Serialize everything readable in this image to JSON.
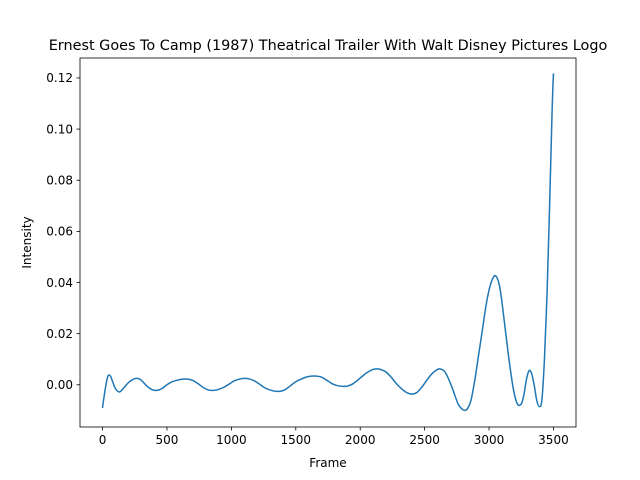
{
  "chart_data": {
    "type": "line",
    "title": "Ernest Goes To Camp (1987) Theatrical Trailer With Walt Disney Pictures Logo",
    "xlabel": "Frame",
    "ylabel": "Intensity",
    "xlim": [
      -175,
      3675
    ],
    "ylim": [
      -0.0165,
      0.1278
    ],
    "xticks": [
      0,
      500,
      1000,
      1500,
      2000,
      2500,
      3000,
      3500
    ],
    "xtick_labels": [
      "0",
      "500",
      "1000",
      "1500",
      "2000",
      "2500",
      "3000",
      "3500"
    ],
    "yticks": [
      0.0,
      0.02,
      0.04,
      0.06,
      0.08,
      0.1,
      0.12
    ],
    "ytick_labels": [
      "0.00",
      "0.02",
      "0.04",
      "0.06",
      "0.08",
      "0.10",
      "0.12"
    ],
    "grid": false,
    "line_color": "#1f77b4",
    "series": [
      {
        "name": "",
        "x": [
          0,
          20,
          40,
          60,
          80,
          100,
          130,
          160,
          200,
          240,
          270,
          300,
          340,
          380,
          420,
          460,
          500,
          540,
          580,
          620,
          660,
          700,
          740,
          780,
          820,
          860,
          900,
          940,
          980,
          1020,
          1060,
          1100,
          1140,
          1180,
          1220,
          1260,
          1300,
          1340,
          1380,
          1420,
          1460,
          1500,
          1540,
          1580,
          1620,
          1660,
          1700,
          1740,
          1780,
          1820,
          1860,
          1900,
          1940,
          1980,
          2020,
          2060,
          2100,
          2140,
          2170,
          2200,
          2240,
          2280,
          2320,
          2360,
          2400,
          2440,
          2480,
          2520,
          2560,
          2600,
          2620,
          2650,
          2680,
          2720,
          2760,
          2800,
          2830,
          2860,
          2890,
          2920,
          2950,
          2980,
          3010,
          3040,
          3060,
          3080,
          3100,
          3130,
          3160,
          3190,
          3220,
          3250,
          3270,
          3290,
          3310,
          3330,
          3350,
          3370,
          3390,
          3410,
          3430,
          3450,
          3470,
          3490,
          3500
        ],
        "values": [
          -0.0088,
          -0.002,
          0.0032,
          0.0035,
          0.001,
          -0.0015,
          -0.0028,
          -0.0015,
          0.0008,
          0.0022,
          0.0025,
          0.0018,
          -0.0003,
          -0.0018,
          -0.0022,
          -0.0015,
          0.0,
          0.0012,
          0.0018,
          0.0022,
          0.0022,
          0.0017,
          0.0005,
          -0.001,
          -0.002,
          -0.0022,
          -0.0018,
          -0.001,
          0.0002,
          0.0015,
          0.0022,
          0.0025,
          0.0023,
          0.0015,
          0.0002,
          -0.0012,
          -0.002,
          -0.0025,
          -0.0025,
          -0.0018,
          -0.0003,
          0.0012,
          0.0022,
          0.003,
          0.0034,
          0.0034,
          0.003,
          0.0018,
          0.0005,
          -0.0003,
          -0.0006,
          -0.0005,
          0.0003,
          0.0018,
          0.0035,
          0.005,
          0.006,
          0.0062,
          0.0058,
          0.005,
          0.003,
          0.0005,
          -0.0015,
          -0.003,
          -0.0036,
          -0.003,
          -0.0008,
          0.002,
          0.0045,
          0.006,
          0.0062,
          0.0055,
          0.003,
          -0.002,
          -0.0075,
          -0.0098,
          -0.0095,
          -0.006,
          0.002,
          0.012,
          0.022,
          0.032,
          0.039,
          0.0425,
          0.042,
          0.039,
          0.0325,
          0.02,
          0.008,
          -0.002,
          -0.0075,
          -0.0075,
          -0.004,
          0.002,
          0.0055,
          0.0045,
          0.0,
          -0.006,
          -0.0085,
          -0.006,
          0.01,
          0.035,
          0.07,
          0.108,
          0.1215
        ]
      }
    ]
  }
}
